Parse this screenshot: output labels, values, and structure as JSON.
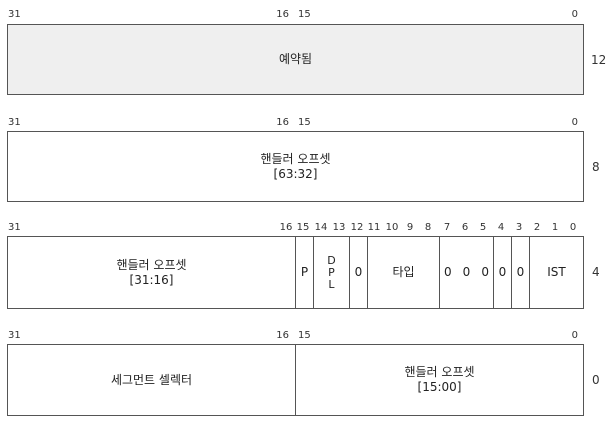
{
  "colors": {
    "border": "#555555",
    "shaded": "#efefef"
  },
  "row1": {
    "bits": [
      "31",
      "16",
      "15",
      "0"
    ],
    "label": "예약됨",
    "offset": "12"
  },
  "row2": {
    "bits": [
      "31",
      "16",
      "15",
      "0"
    ],
    "label_line1": "핸들러 오프셋",
    "label_line2": "[63:32]",
    "offset": "8"
  },
  "row3": {
    "bits": [
      "31",
      "16",
      "15",
      "14",
      "13",
      "12",
      "11",
      "10",
      "9",
      "8",
      "7",
      "6",
      "5",
      "4",
      "3",
      "2",
      "1",
      "0"
    ],
    "offset_label_line1": "핸들러 오프셋",
    "offset_label_line2": "[31:16]",
    "p": "P",
    "dpl": [
      "D",
      "P",
      "L"
    ],
    "zero1": "0",
    "type": "타입",
    "zeros": [
      "0",
      "0",
      "0"
    ],
    "zero2": "0",
    "zero3": "0",
    "ist": "IST",
    "offset": "4"
  },
  "row4": {
    "bits": [
      "31",
      "16",
      "15",
      "0"
    ],
    "selector": "세그먼트 셀렉터",
    "label_line1": "핸들러 오프셋",
    "label_line2": "[15:00]",
    "offset": "0"
  }
}
